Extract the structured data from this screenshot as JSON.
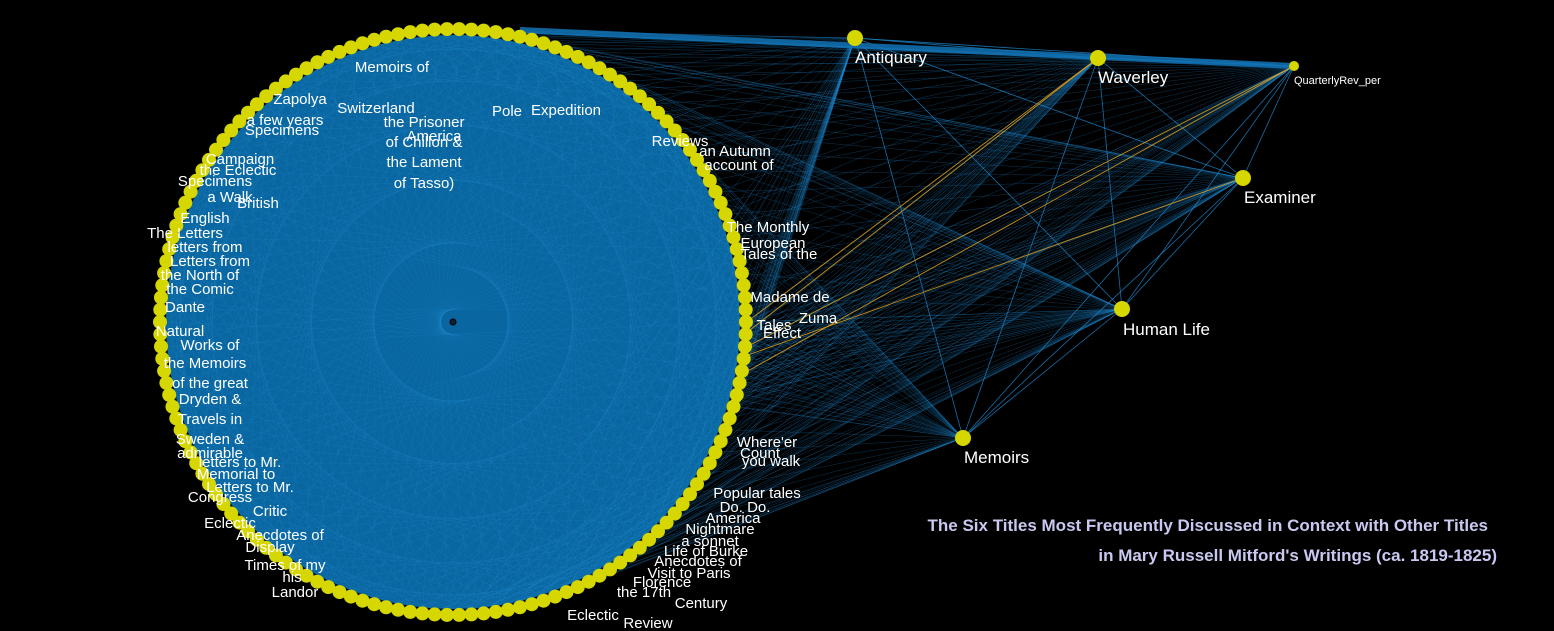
{
  "colors": {
    "background": "#000000",
    "edge": "#1e8ad2",
    "edge_dense": "#0a6fae",
    "edge_highlight": "#e8a21a",
    "node": "#d6d600",
    "label": "#ffffff",
    "caption": "#c8c8f0"
  },
  "caption": {
    "line1": "The Six Titles Most Frequently Discussed in Context with Other Titles",
    "line2": "in Mary Russell Mitford's Writings (ca. 1819-1825)"
  },
  "hubs": [
    {
      "id": "antiquary",
      "label": "Antiquary",
      "size": "large"
    },
    {
      "id": "waverley",
      "label": "Waverley",
      "size": "large"
    },
    {
      "id": "quarterlyrev",
      "label": "QuarterlyRev_per",
      "size": "small"
    },
    {
      "id": "examiner",
      "label": "Examiner",
      "size": "large"
    },
    {
      "id": "human-life",
      "label": "Human Life",
      "size": "large"
    },
    {
      "id": "memoirs",
      "label": "Memoirs",
      "size": "large"
    }
  ],
  "ring_labels": [
    "Pole",
    "America",
    "the Prisoner",
    "Switzerland",
    "of Chillon &",
    "the Lament",
    "of Tasso)",
    "Memoirs of",
    "Zapolya",
    "a few years",
    "Specimens",
    "Campaign",
    "the Eclectic",
    "Specimens",
    "a Walk",
    "British",
    "English",
    "The Letters",
    "letters from",
    "Letters from",
    "the North of",
    "the Comic",
    "Dante",
    "Natural",
    "Works of",
    "the Memoirs",
    "of the great",
    "Dryden &",
    "Travels in",
    "Sweden &",
    "admirable",
    "letters to Mr.",
    "Memorial to",
    "Letters to Mr.",
    "Congress",
    "Critic",
    "Eclectic",
    "Anecdotes of",
    "Display",
    "Times of my",
    "his",
    "Landor",
    "Expedition",
    "Reviews",
    "an Autumn",
    "account of",
    "The Monthly",
    "European",
    "Tales of the",
    "Madame de",
    "Zuma",
    "Tales",
    "Effect",
    "Where'er",
    "Count",
    "you walk",
    "Popular tales",
    "Do. Do.",
    "America",
    "Nightmare",
    "a sonnet",
    "Life of Burke",
    "Anecdotes of",
    "Visit to Paris",
    "Florence",
    "the 17th",
    "Century",
    "Eclectic",
    "Review"
  ]
}
